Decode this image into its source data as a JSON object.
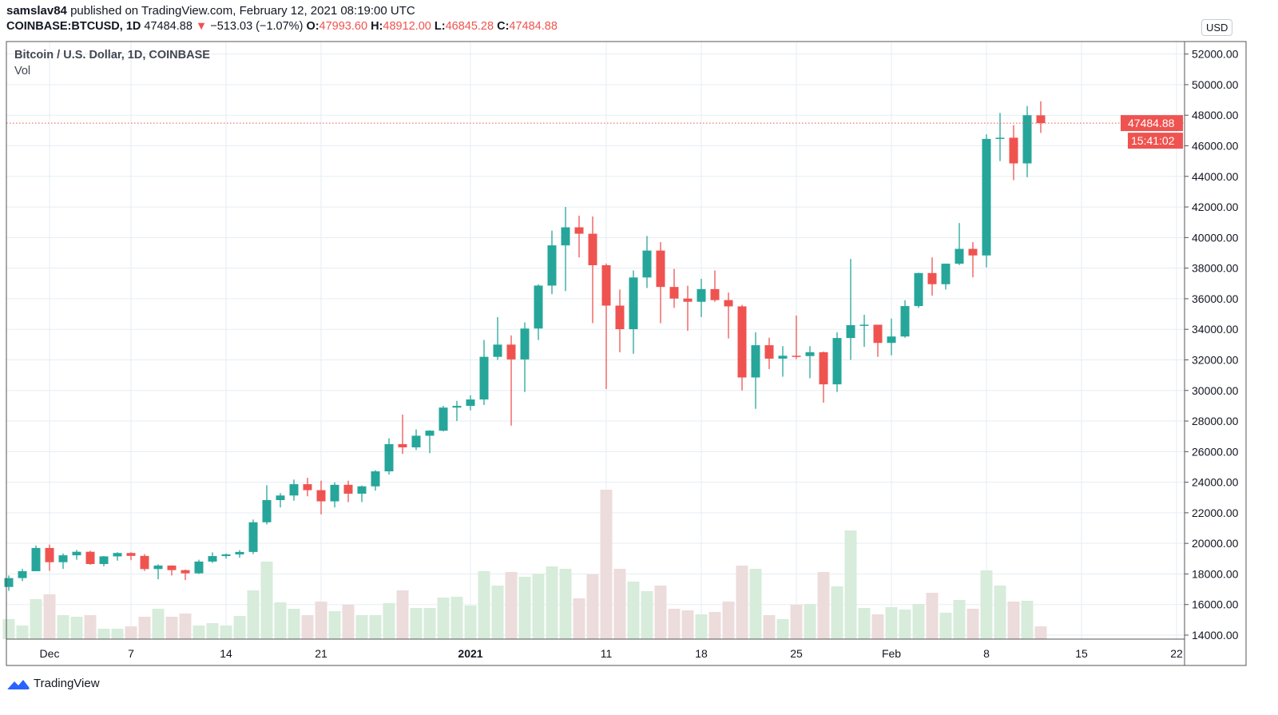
{
  "header": {
    "publisher": "samslav84",
    "published_text": " published on TradingView.com, February 12, 2021 08:19:00 UTC"
  },
  "ticker": {
    "symbol": "COINBASE:BTCUSD, 1D",
    "last": "47484.88",
    "change": "−513.03 (−1.07%)",
    "o_label": "O:",
    "o": "47993.60",
    "h_label": "H:",
    "h": "48912.00",
    "l_label": "L:",
    "l": "46845.28",
    "c_label": "C:",
    "c": "47484.88"
  },
  "legend": {
    "title": "Bitcoin / U.S. Dollar, 1D, COINBASE",
    "vol": "Vol"
  },
  "currency": "USD",
  "price_tag": "47484.88",
  "countdown": "15:41:02",
  "brand": "TradingView",
  "colors": {
    "up": "#26a69a",
    "down": "#ef5350",
    "vol_up": "#d7ecdb",
    "vol_down": "#eddcdc",
    "grid": "#e6edf3"
  },
  "chart_data": {
    "type": "candlestick",
    "title": "Bitcoin / U.S. Dollar, 1D, COINBASE",
    "ylim": [
      14000,
      52000
    ],
    "yticks": [
      "14000.00",
      "16000.00",
      "18000.00",
      "20000.00",
      "22000.00",
      "24000.00",
      "26000.00",
      "28000.00",
      "30000.00",
      "32000.00",
      "34000.00",
      "36000.00",
      "38000.00",
      "40000.00",
      "42000.00",
      "44000.00",
      "46000.00",
      "48000.00",
      "50000.00",
      "52000.00"
    ],
    "xticks": [
      {
        "label": "Dec",
        "day": 3
      },
      {
        "label": "7",
        "day": 9
      },
      {
        "label": "14",
        "day": 16
      },
      {
        "label": "21",
        "day": 23
      },
      {
        "label": "2021",
        "day": 34
      },
      {
        "label": "11",
        "day": 44
      },
      {
        "label": "18",
        "day": 51
      },
      {
        "label": "25",
        "day": 58
      },
      {
        "label": "Feb",
        "day": 65
      },
      {
        "label": "8",
        "day": 72
      },
      {
        "label": "15",
        "day": 79
      },
      {
        "label": "22",
        "day": 86
      }
    ],
    "first_date": "2020-11-28",
    "ohlc": [
      [
        17150,
        17900,
        16900,
        17730
      ],
      [
        17730,
        18330,
        17530,
        18180
      ],
      [
        18180,
        19860,
        18180,
        19700
      ],
      [
        19700,
        19920,
        18200,
        18770
      ],
      [
        18770,
        19340,
        18330,
        19220
      ],
      [
        19220,
        19570,
        18930,
        19450
      ],
      [
        19450,
        19520,
        18600,
        18650
      ],
      [
        18650,
        19180,
        18500,
        19150
      ],
      [
        19150,
        19420,
        18870,
        19370
      ],
      [
        19370,
        19420,
        18900,
        19180
      ],
      [
        19180,
        19300,
        18200,
        18320
      ],
      [
        18320,
        18630,
        17650,
        18550
      ],
      [
        18550,
        18560,
        17900,
        18250
      ],
      [
        18250,
        18290,
        17600,
        18040
      ],
      [
        18040,
        18930,
        18000,
        18810
      ],
      [
        18810,
        19410,
        18720,
        19170
      ],
      [
        19170,
        19340,
        19000,
        19280
      ],
      [
        19280,
        19560,
        19060,
        19440
      ],
      [
        19440,
        21560,
        19300,
        21380
      ],
      [
        21380,
        23800,
        21240,
        22830
      ],
      [
        22830,
        23280,
        22350,
        23130
      ],
      [
        23130,
        24170,
        22790,
        23870
      ],
      [
        23870,
        24290,
        23080,
        23480
      ],
      [
        23480,
        24100,
        21900,
        22750
      ],
      [
        22750,
        23990,
        22350,
        23830
      ],
      [
        23830,
        24100,
        22700,
        23250
      ],
      [
        23250,
        23780,
        22700,
        23730
      ],
      [
        23730,
        24790,
        23450,
        24710
      ],
      [
        24710,
        26870,
        24500,
        26490
      ],
      [
        26490,
        28420,
        25850,
        26280
      ],
      [
        26280,
        27450,
        26100,
        27040
      ],
      [
        27040,
        27400,
        25900,
        27370
      ],
      [
        27370,
        28990,
        27320,
        28880
      ],
      [
        28880,
        29320,
        28000,
        28990
      ],
      [
        28990,
        29680,
        28700,
        29410
      ],
      [
        29410,
        33300,
        29050,
        32200
      ],
      [
        32200,
        34800,
        32000,
        33000
      ],
      [
        33000,
        33600,
        27700,
        32030
      ],
      [
        32030,
        34450,
        29900,
        34050
      ],
      [
        34050,
        36940,
        33300,
        36860
      ],
      [
        36860,
        40450,
        36300,
        39490
      ],
      [
        39490,
        42000,
        36500,
        40670
      ],
      [
        40670,
        41430,
        38700,
        40250
      ],
      [
        40250,
        41380,
        34400,
        38190
      ],
      [
        38190,
        38300,
        30100,
        35550
      ],
      [
        35550,
        36600,
        32500,
        34010
      ],
      [
        34010,
        37850,
        32400,
        37390
      ],
      [
        37390,
        40100,
        36700,
        39150
      ],
      [
        39150,
        39700,
        34400,
        36770
      ],
      [
        36770,
        37950,
        35400,
        36010
      ],
      [
        36010,
        36850,
        33900,
        35800
      ],
      [
        35800,
        37300,
        34800,
        36630
      ],
      [
        36630,
        37850,
        35800,
        35910
      ],
      [
        35910,
        36400,
        33400,
        35500
      ],
      [
        35500,
        35600,
        30000,
        30850
      ],
      [
        30850,
        33800,
        28800,
        32960
      ],
      [
        32960,
        33450,
        31400,
        32080
      ],
      [
        32080,
        32900,
        30900,
        32270
      ],
      [
        32270,
        34900,
        32050,
        32250
      ],
      [
        32250,
        32900,
        30800,
        32500
      ],
      [
        32500,
        32550,
        29200,
        30400
      ],
      [
        30400,
        33800,
        29900,
        33430
      ],
      [
        33430,
        38600,
        32000,
        34270
      ],
      [
        34270,
        34950,
        32850,
        34300
      ],
      [
        34300,
        34300,
        32200,
        33110
      ],
      [
        33110,
        34700,
        32300,
        33530
      ],
      [
        33530,
        35900,
        33450,
        35520
      ],
      [
        35520,
        37700,
        35400,
        37680
      ],
      [
        37680,
        38700,
        36200,
        36950
      ],
      [
        36950,
        38300,
        36600,
        38290
      ],
      [
        38290,
        40950,
        38200,
        39260
      ],
      [
        39260,
        39700,
        37400,
        38830
      ],
      [
        38830,
        46750,
        38050,
        46450
      ],
      [
        46450,
        48150,
        45000,
        46530
      ],
      [
        46530,
        47350,
        43750,
        44850
      ],
      [
        44850,
        48600,
        43950,
        48000
      ],
      [
        47994,
        48912,
        46845,
        47485
      ]
    ],
    "volume": [
      25,
      17,
      50,
      56,
      30,
      28,
      30,
      13,
      13,
      16,
      28,
      38,
      28,
      32,
      17,
      20,
      17,
      29,
      61,
      97,
      46,
      38,
      30,
      47,
      35,
      43,
      30,
      30,
      45,
      61,
      39,
      39,
      52,
      53,
      42,
      85,
      67,
      84,
      78,
      82,
      91,
      88,
      51,
      81,
      187,
      88,
      72,
      60,
      67,
      38,
      36,
      31,
      34,
      47,
      92,
      88,
      30,
      25,
      43,
      44,
      84,
      66,
      136,
      39,
      31,
      40,
      37,
      44,
      58,
      33,
      49,
      38,
      86,
      67,
      47,
      48,
      16
    ]
  }
}
